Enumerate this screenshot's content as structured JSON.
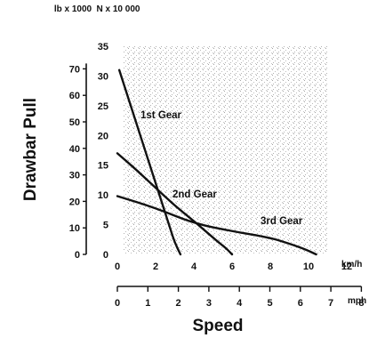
{
  "chart_data": {
    "type": "line",
    "ylabel": "Drawbar Pull",
    "xlabel": "Speed",
    "y_axis_lbx1000": {
      "unit": "lb x 1000",
      "ticks": [
        "0",
        "10",
        "20",
        "30",
        "40",
        "50",
        "60",
        "70"
      ]
    },
    "y_axis_nx10000": {
      "unit": "N x 10 000",
      "ticks": [
        "0",
        "5",
        "10",
        "15",
        "20",
        "25",
        "30",
        "35"
      ]
    },
    "x_axis_kmh": {
      "unit": "km/h",
      "ticks": [
        "0",
        "2",
        "4",
        "6",
        "8",
        "10",
        "12"
      ]
    },
    "x_axis_mph": {
      "unit": "mph",
      "ticks": [
        "0",
        "1",
        "2",
        "3",
        "4",
        "5",
        "6",
        "7",
        "8"
      ]
    },
    "ylim_kN_x10000": [
      0,
      35
    ],
    "xlim_kmh": [
      0,
      13
    ],
    "series": [
      {
        "name": "1st Gear",
        "x_kmh": [
          0.1,
          0.6,
          1.1,
          1.6,
          2.0,
          2.4,
          2.8,
          3.0,
          3.3
        ],
        "y_Nx10000": [
          31,
          26,
          21,
          16,
          12,
          8,
          4,
          2,
          0
        ]
      },
      {
        "name": "2nd Gear",
        "x_kmh": [
          0.0,
          1.0,
          2.0,
          3.0,
          4.0,
          4.8,
          5.3,
          5.7,
          6.0
        ],
        "y_Nx10000": [
          17,
          14.2,
          11.2,
          8.2,
          5.6,
          3.4,
          2.0,
          1.0,
          0
        ]
      },
      {
        "name": "3rd Gear",
        "x_kmh": [
          0.0,
          2.0,
          4.0,
          6.0,
          8.0,
          9.0,
          9.8,
          10.4
        ],
        "y_Nx10000": [
          9.8,
          7.8,
          5.2,
          3.9,
          2.8,
          1.8,
          0.9,
          0
        ]
      }
    ]
  }
}
